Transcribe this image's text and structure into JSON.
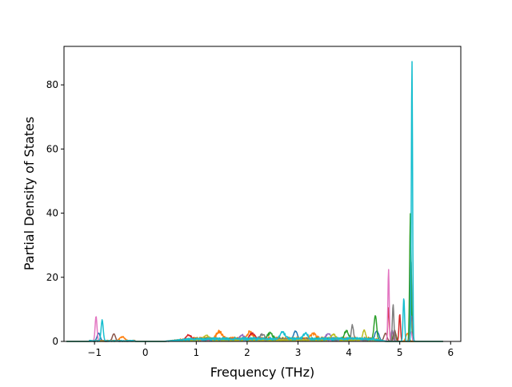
{
  "chart_data": {
    "type": "line",
    "title": "",
    "xlabel": "Frequency (THz)",
    "ylabel": "Partial Density of States",
    "xlim": [
      -1.6,
      6.2
    ],
    "ylim": [
      0,
      92
    ],
    "xticks": [
      -1,
      0,
      1,
      2,
      3,
      4,
      5,
      6
    ],
    "xtick_labels": [
      "−1",
      "0",
      "1",
      "2",
      "3",
      "4",
      "5",
      "6"
    ],
    "yticks": [
      0,
      20,
      40,
      60,
      80
    ],
    "ytick_labels": [
      "0",
      "20",
      "40",
      "60",
      "80"
    ],
    "grid": false,
    "legend": "none",
    "x_range": [
      -1.55,
      5.85
    ],
    "series": [
      {
        "color": "#1f77b4",
        "background": 0.5,
        "peaks": [
          [
            -0.92,
            2.5,
            0.03
          ],
          [
            2.95,
            2.7,
            0.04
          ],
          [
            4.55,
            3.0,
            0.04
          ],
          [
            5.22,
            26.0,
            0.015
          ]
        ]
      },
      {
        "color": "#ff7f0e",
        "background": 1.1,
        "peaks": [
          [
            -0.45,
            1.2,
            0.05
          ],
          [
            1.45,
            2.2,
            0.05
          ],
          [
            2.05,
            2.0,
            0.05
          ],
          [
            3.3,
            1.5,
            0.05
          ],
          [
            5.15,
            2.5,
            0.03
          ]
        ]
      },
      {
        "color": "#2ca02c",
        "background": 0.9,
        "peaks": [
          [
            2.45,
            1.8,
            0.05
          ],
          [
            3.95,
            2.5,
            0.04
          ],
          [
            4.52,
            7.5,
            0.025
          ],
          [
            4.9,
            3.0,
            0.03
          ],
          [
            5.21,
            40.0,
            0.015
          ]
        ]
      },
      {
        "color": "#d62728",
        "background": 0.7,
        "peaks": [
          [
            0.85,
            1.5,
            0.05
          ],
          [
            2.1,
            2.0,
            0.05
          ],
          [
            4.78,
            10.5,
            0.015
          ],
          [
            5.0,
            8.5,
            0.015
          ]
        ]
      },
      {
        "color": "#9467bd",
        "background": 0.6,
        "peaks": [
          [
            1.9,
            1.5,
            0.05
          ],
          [
            3.6,
            2.0,
            0.05
          ],
          [
            4.85,
            3.5,
            0.02
          ]
        ]
      },
      {
        "color": "#8c564b",
        "background": 0.5,
        "peaks": [
          [
            -0.62,
            2.3,
            0.03
          ],
          [
            4.72,
            2.5,
            0.03
          ],
          [
            4.9,
            3.5,
            0.02
          ]
        ]
      },
      {
        "color": "#e377c2",
        "background": 0.6,
        "peaks": [
          [
            -0.97,
            7.8,
            0.018
          ],
          [
            4.78,
            22.5,
            0.013
          ],
          [
            5.22,
            3.0,
            0.02
          ]
        ]
      },
      {
        "color": "#7f7f7f",
        "background": 0.8,
        "peaks": [
          [
            2.3,
            1.5,
            0.05
          ],
          [
            4.07,
            4.5,
            0.02
          ],
          [
            4.87,
            11.5,
            0.015
          ],
          [
            5.23,
            8.0,
            0.02
          ]
        ]
      },
      {
        "color": "#bcbd22",
        "background": 0.5,
        "peaks": [
          [
            1.2,
            1.5,
            0.05
          ],
          [
            3.7,
            1.8,
            0.05
          ],
          [
            4.3,
            3.0,
            0.03
          ]
        ]
      },
      {
        "color": "#17becf",
        "background": 1.0,
        "peaks": [
          [
            -0.85,
            6.5,
            0.02
          ],
          [
            2.7,
            2.0,
            0.05
          ],
          [
            3.15,
            2.0,
            0.04
          ],
          [
            5.08,
            13.5,
            0.015
          ],
          [
            5.24,
            88.0,
            0.012
          ]
        ]
      }
    ]
  }
}
